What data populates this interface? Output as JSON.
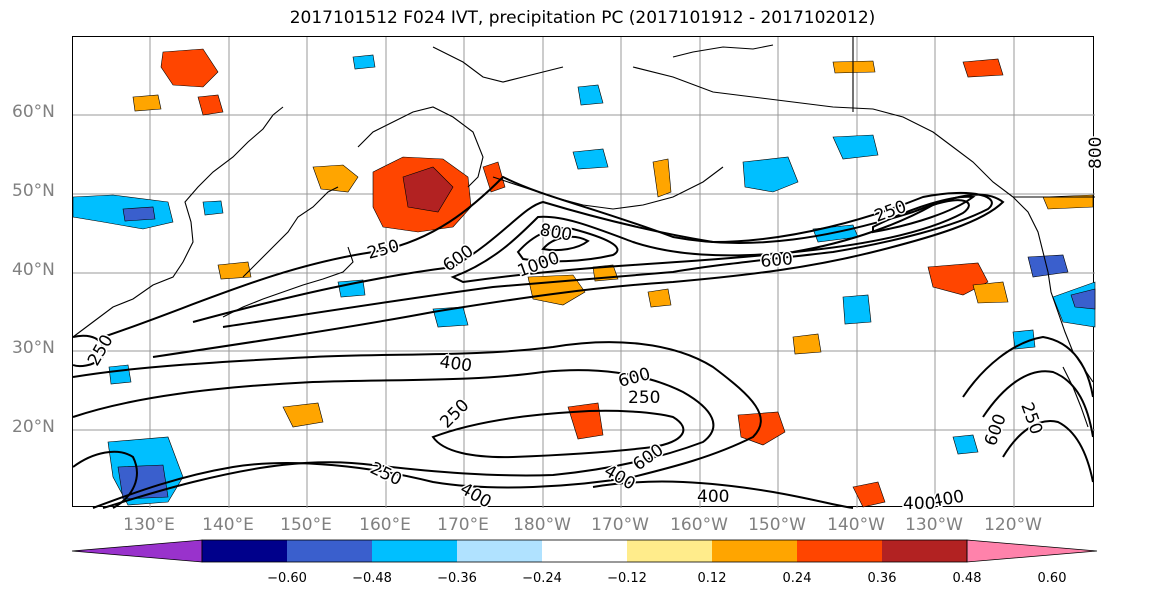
{
  "title": "2017101512 F024 IVT, precipitation PC (2017101912 - 2017102012)",
  "lat_labels": [
    "60°N",
    "50°N",
    "40°N",
    "30°N",
    "20°N"
  ],
  "lon_labels": [
    "130°E",
    "140°E",
    "150°E",
    "160°E",
    "170°E",
    "180°W",
    "170°W",
    "160°W",
    "150°W",
    "140°W",
    "130°W",
    "120°W"
  ],
  "contour_labels": [
    "250",
    "600",
    "800",
    "1000",
    "250",
    "600",
    "800",
    "400",
    "250",
    "250",
    "600",
    "400",
    "600",
    "250",
    "400",
    "400",
    "400",
    "250",
    "600",
    "400",
    "250"
  ],
  "colorbar": {
    "ticks": [
      "−0.60",
      "−0.48",
      "−0.36",
      "−0.24",
      "−0.12",
      "0.12",
      "0.24",
      "0.36",
      "0.48",
      "0.60"
    ],
    "colors": [
      "#9932cc",
      "#00008b",
      "#3a5fcd",
      "#00bfff",
      "#b0e2ff",
      "#ffffff",
      "#ffec8b",
      "#ffa500",
      "#ff4500",
      "#b22222",
      "#ff82ab"
    ]
  },
  "chart_data": {
    "type": "map",
    "title": "2017101512 F024 IVT, precipitation PC (2017101912 - 2017102012)",
    "extent": {
      "lon_min": 121,
      "lon_max": 246,
      "lat_min": 10,
      "lat_max": 70
    },
    "contour_levels": [
      250,
      400,
      600,
      800,
      1000
    ],
    "colorbar_ticks": [
      -0.6,
      -0.48,
      -0.36,
      -0.24,
      -0.12,
      0.12,
      0.24,
      0.36,
      0.48,
      0.6
    ],
    "grid": true
  }
}
